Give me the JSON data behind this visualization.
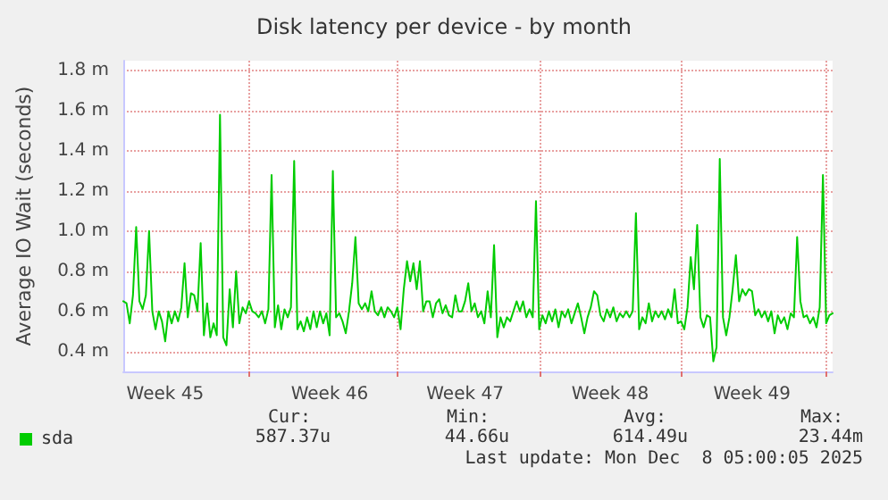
{
  "chart_data": {
    "type": "line",
    "title": "Disk latency per device - by month",
    "ylabel": "Average IO Wait (seconds)",
    "categories": [
      null,
      null,
      null,
      null,
      null,
      null,
      null,
      null,
      null,
      null,
      null,
      null,
      null,
      "Week 45",
      null,
      null,
      null,
      null,
      null,
      null,
      null,
      null,
      null,
      null,
      null,
      null,
      null,
      null,
      null,
      null,
      null,
      null,
      null,
      null,
      null,
      null,
      null,
      null,
      null,
      null,
      null,
      null,
      null,
      null,
      null,
      null,
      null,
      null,
      null,
      null,
      null,
      null,
      null,
      null,
      null,
      null,
      null,
      null,
      null,
      null,
      null,
      null,
      null,
      null,
      "Week 46",
      null,
      null,
      null,
      null,
      null,
      null,
      null,
      null,
      null,
      null,
      null,
      null,
      null,
      null,
      null,
      null,
      null,
      null,
      null,
      null,
      null,
      null,
      null,
      null,
      null,
      null,
      null,
      null,
      null,
      null,
      null,
      null,
      null,
      null,
      null,
      null,
      null,
      null,
      null,
      null,
      null,
      "Week 47",
      null,
      null,
      null,
      null,
      null,
      null,
      null,
      null,
      null,
      null,
      null,
      null,
      null,
      null,
      null,
      null,
      null,
      null,
      null,
      null,
      null,
      null,
      null,
      null,
      null,
      null,
      null,
      null,
      null,
      null,
      null,
      null,
      null,
      null,
      null,
      null,
      null,
      null,
      null,
      null,
      null,
      null,
      null,
      null,
      "Week 48",
      null,
      null,
      null,
      null,
      null,
      null,
      null,
      null,
      null,
      null,
      null,
      null,
      null,
      null,
      null,
      null,
      null,
      null,
      null,
      null,
      null,
      null,
      null,
      null,
      null,
      null,
      null,
      null,
      null,
      null,
      null,
      null,
      null,
      null,
      null,
      null,
      null,
      null,
      null,
      null,
      null,
      null,
      null,
      "Week 49",
      null,
      null,
      null,
      null,
      null,
      null,
      null,
      null,
      null,
      null,
      null,
      null,
      null,
      null,
      null,
      null,
      null,
      null,
      null,
      null,
      null,
      null,
      null,
      null,
      null
    ],
    "ylim": [
      0.3,
      1.85
    ],
    "yticks": [
      {
        "value": 0.4,
        "label": "0.4 m"
      },
      {
        "value": 0.6,
        "label": "0.6 m"
      },
      {
        "value": 0.8,
        "label": "0.8 m"
      },
      {
        "value": 1.0,
        "label": "1.0 m"
      },
      {
        "value": 1.2,
        "label": "1.2 m"
      },
      {
        "value": 1.4,
        "label": "1.4 m"
      },
      {
        "value": 1.6,
        "label": "1.6 m"
      },
      {
        "value": 1.8,
        "label": "1.8 m"
      }
    ],
    "grid": true,
    "legend": "bottom left",
    "marker": "none",
    "annotations": [
      "Cur:",
      "587.37u",
      "Min:",
      "44.66u",
      "Avg:",
      "614.49u",
      "Max:",
      "23.44m",
      "Last update: Mon Dec  8 05:00:05 2025"
    ],
    "series": [
      {
        "name": "sda",
        "color": "#00cc00",
        "values": [
          0.65,
          0.64,
          0.54,
          0.68,
          1.02,
          0.65,
          0.61,
          0.68,
          1.0,
          0.6,
          0.51,
          0.6,
          0.55,
          0.45,
          0.6,
          0.54,
          0.6,
          0.55,
          0.62,
          0.84,
          0.57,
          0.69,
          0.68,
          0.6,
          0.94,
          0.48,
          0.64,
          0.47,
          0.54,
          0.48,
          1.58,
          0.47,
          0.43,
          0.71,
          0.52,
          0.8,
          0.54,
          0.62,
          0.59,
          0.65,
          0.6,
          0.59,
          0.57,
          0.6,
          0.54,
          0.61,
          1.28,
          0.52,
          0.63,
          0.51,
          0.61,
          0.57,
          0.62,
          1.35,
          0.51,
          0.55,
          0.5,
          0.57,
          0.51,
          0.6,
          0.52,
          0.6,
          0.54,
          0.59,
          0.48,
          1.3,
          0.57,
          0.59,
          0.55,
          0.49,
          0.6,
          0.74,
          0.97,
          0.64,
          0.61,
          0.64,
          0.6,
          0.7,
          0.6,
          0.58,
          0.62,
          0.57,
          0.62,
          0.6,
          0.57,
          0.62,
          0.51,
          0.71,
          0.85,
          0.75,
          0.84,
          0.71,
          0.85,
          0.6,
          0.65,
          0.65,
          0.57,
          0.64,
          0.66,
          0.59,
          0.63,
          0.58,
          0.57,
          0.68,
          0.6,
          0.6,
          0.65,
          0.74,
          0.6,
          0.64,
          0.57,
          0.6,
          0.54,
          0.7,
          0.57,
          0.93,
          0.47,
          0.57,
          0.52,
          0.57,
          0.55,
          0.6,
          0.65,
          0.6,
          0.65,
          0.57,
          0.61,
          0.57,
          1.15,
          0.51,
          0.58,
          0.54,
          0.6,
          0.55,
          0.61,
          0.52,
          0.6,
          0.57,
          0.61,
          0.54,
          0.59,
          0.64,
          0.57,
          0.49,
          0.57,
          0.62,
          0.7,
          0.68,
          0.58,
          0.55,
          0.61,
          0.57,
          0.62,
          0.55,
          0.59,
          0.57,
          0.6,
          0.57,
          0.6,
          1.09,
          0.51,
          0.57,
          0.54,
          0.64,
          0.55,
          0.6,
          0.57,
          0.6,
          0.56,
          0.61,
          0.57,
          0.71,
          0.54,
          0.55,
          0.51,
          0.62,
          0.87,
          0.71,
          1.03,
          0.57,
          0.52,
          0.58,
          0.57,
          0.35,
          0.42,
          1.36,
          0.57,
          0.48,
          0.57,
          0.71,
          0.88,
          0.65,
          0.71,
          0.68,
          0.71,
          0.7,
          0.58,
          0.61,
          0.57,
          0.6,
          0.55,
          0.6,
          0.49,
          0.58,
          0.54,
          0.57,
          0.51,
          0.59,
          0.57,
          0.97,
          0.65,
          0.57,
          0.58,
          0.54,
          0.57,
          0.52,
          0.62,
          1.28,
          0.54,
          0.58,
          0.59
        ]
      }
    ]
  }
}
